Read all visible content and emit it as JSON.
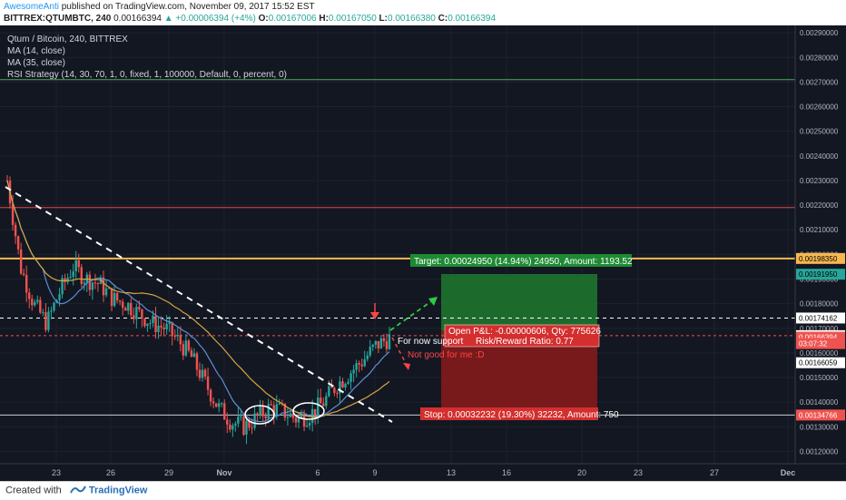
{
  "header": {
    "author": "AwesomeAnti",
    "published_text": "published on TradingView.com, November 09, 2017 15:52 EST",
    "symbol": "BITTREX:QTUMBTC, 240",
    "last_price": "0.00166394",
    "change": "▲ +0.00006394 (+4%)",
    "ohlc_o_label": "O:",
    "ohlc_o": "0.00167006",
    "ohlc_h_label": "H:",
    "ohlc_h": "0.00167050",
    "ohlc_l_label": "L:",
    "ohlc_l": "0.00166380",
    "ohlc_c_label": "C:",
    "ohlc_c": "0.00166394"
  },
  "legend": {
    "title": "Qtum / Bitcoin, 240, BITTREX",
    "ma14": "MA (14, close)",
    "ma35": "MA (35, close)",
    "rsi": "RSI Strategy (14, 30, 70, 1, 0, fixed, 1, 100000, Default, 0, percent, 0)"
  },
  "price_axis": {
    "ticks": [
      "0.00290000",
      "0.00280000",
      "0.00270000",
      "0.00260000",
      "0.00250000",
      "0.00240000",
      "0.00230000",
      "0.00220000",
      "0.00210000",
      "0.00200000",
      "0.00190000",
      "0.00180000",
      "0.00170000",
      "0.00160000",
      "0.00150000",
      "0.00140000",
      "0.00130000",
      "0.00120000"
    ],
    "tick_values": [
      0.0029,
      0.0028,
      0.0027,
      0.0026,
      0.0025,
      0.0024,
      0.0023,
      0.0022,
      0.0021,
      0.002,
      0.0019,
      0.0018,
      0.0017,
      0.0016,
      0.0015,
      0.0014,
      0.0013,
      0.0012
    ],
    "labels": [
      {
        "text": "0.00198350",
        "value": 0.0019835,
        "style": "yellow"
      },
      {
        "text": "0.00191950",
        "value": 0.0019195,
        "style": "green"
      },
      {
        "text": "0.00174162",
        "value": 0.00174162,
        "style": "plain"
      },
      {
        "text": "0.00167000",
        "value": 0.00167,
        "style": "plain"
      },
      {
        "text": "0.00166394",
        "value": 0.00166394,
        "style": "red"
      },
      {
        "text": "03:07:32",
        "value": 0.001638,
        "style": "red"
      },
      {
        "text": "0.00166059",
        "value": 0.00156,
        "style": "plain"
      },
      {
        "text": "0.00134766",
        "value": 0.00134766,
        "style": "red"
      }
    ]
  },
  "time_axis": {
    "ticks": [
      "23",
      "26",
      "29",
      "Nov",
      "6",
      "9",
      "13",
      "16",
      "20",
      "23",
      "27",
      "Dec"
    ]
  },
  "annotations": {
    "target": "Target: 0.00024950 (14.94%) 24950, Amount: 1193.52",
    "stop": "Stop: 0.00032232 (19.30%) 32232, Amount: 750",
    "open_pl": "Open P&L: -0.00000606, Qty: 775626",
    "risk_reward": "Risk/Reward Ratio: 0.77",
    "support": "For now support",
    "not_good": "Not good for me :D"
  },
  "colors": {
    "chart_bg": "#131722",
    "up": "#26a69a",
    "down": "#ef5350",
    "target": "#1e7a2e",
    "stop": "#8b1a1a",
    "ma14": "#5b8fd6",
    "ma35": "#d6a642",
    "hline_green": "#4caf50",
    "hline_red": "#e04848",
    "hline_yellow": "#f7b84f"
  },
  "chart_data": {
    "type": "candlestick",
    "symbol": "QTUMBTC",
    "timeframe": "240",
    "approximate_close_path": [
      0.0023,
      0.00195,
      0.0018,
      0.00172,
      0.00185,
      0.00195,
      0.0019,
      0.00188,
      0.00182,
      0.0018,
      0.00176,
      0.00172,
      0.0017,
      0.00165,
      0.00158,
      0.00148,
      0.00138,
      0.00132,
      0.0013,
      0.00134,
      0.00138,
      0.00136,
      0.00133,
      0.00135,
      0.0014,
      0.00147,
      0.00152,
      0.00157,
      0.00163,
      0.00166
    ],
    "ylim": [
      0.00115,
      0.00293
    ]
  },
  "footer": {
    "created_with": "Created with",
    "brand": "TradingView"
  }
}
